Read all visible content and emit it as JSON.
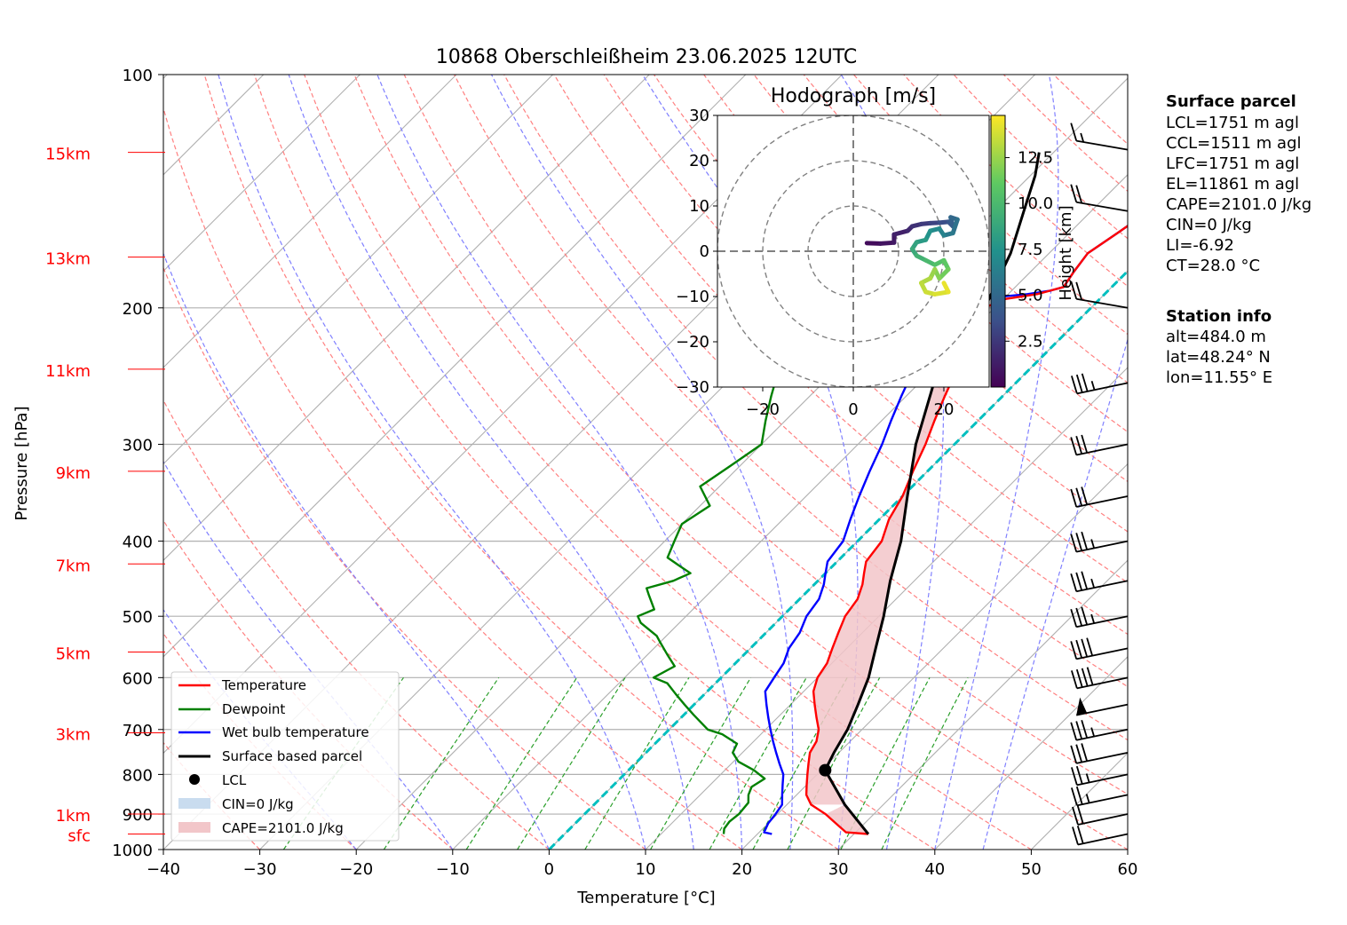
{
  "chart_data": [
    {
      "type": "skew-t",
      "title": "10868 Oberschleißheim 23.06.2025 12UTC",
      "xlabel": "Temperature [°C]",
      "ylabel": "Pressure [hPa]",
      "xlim": [
        -40,
        60
      ],
      "ylim": [
        1000,
        100
      ],
      "y_scale": "log",
      "x_ticks": [
        -40,
        -30,
        -20,
        -10,
        0,
        10,
        20,
        30,
        40,
        50,
        60
      ],
      "x_tick_labels": [
        "−40",
        "−30",
        "−20",
        "−10",
        "0",
        "10",
        "20",
        "30",
        "40",
        "50",
        "60"
      ],
      "y_ticks": [
        1000,
        900,
        800,
        700,
        600,
        500,
        400,
        300,
        200,
        100
      ],
      "y_tick_labels": [
        "1000",
        "900",
        "800",
        "700",
        "600",
        "500",
        "400",
        "300",
        "200",
        "100"
      ],
      "height_labels": [
        {
          "label": "sfc",
          "p": 955
        },
        {
          "label": "1km",
          "p": 900
        },
        {
          "label": "3km",
          "p": 707
        },
        {
          "label": "5km",
          "p": 556
        },
        {
          "label": "7km",
          "p": 428
        },
        {
          "label": "9km",
          "p": 325
        },
        {
          "label": "11km",
          "p": 240
        },
        {
          "label": "13km",
          "p": 172
        },
        {
          "label": "15km",
          "p": 126
        }
      ],
      "grid": true,
      "legend_position": "lower-left",
      "colors": {
        "temperature": "#ff0000",
        "dewpoint": "#008000",
        "wetbulb": "#0000ff",
        "parcel": "#000000",
        "cape_fill": "#f2c6c9",
        "cin_fill": "#c9dcef",
        "isotherm_0": "#00bfbf",
        "dry_adiabat": "#ff8080",
        "moist_adiabat": "#8080ff",
        "mixing_ratio": "#2ca02c",
        "height_label": "#ff0000"
      },
      "series": [
        {
          "name": "Temperature",
          "points": [
            [
              31.5,
              955
            ],
            [
              29,
              950
            ],
            [
              27,
              925
            ],
            [
              25,
              900
            ],
            [
              22.5,
              875
            ],
            [
              21,
              850
            ],
            [
              20,
              825
            ],
            [
              19,
              800
            ],
            [
              18,
              775
            ],
            [
              17,
              750
            ],
            [
              16.5,
              725
            ],
            [
              15.5,
              700
            ],
            [
              14,
              675
            ],
            [
              12.5,
              650
            ],
            [
              11,
              625
            ],
            [
              10,
              600
            ],
            [
              9.5,
              575
            ],
            [
              8.5,
              550
            ],
            [
              7.5,
              525
            ],
            [
              6.5,
              500
            ],
            [
              6,
              475
            ],
            [
              5,
              455
            ],
            [
              4,
              440
            ],
            [
              3,
              425
            ],
            [
              2.5,
              400
            ],
            [
              1,
              375
            ],
            [
              0,
              350
            ],
            [
              -1.5,
              325
            ],
            [
              -3,
              300
            ],
            [
              -4.5,
              280
            ],
            [
              -6,
              260
            ],
            [
              -7.5,
              240
            ],
            [
              -9,
              225
            ],
            [
              -10.5,
              210
            ],
            [
              -11,
              200
            ],
            [
              -10,
              195
            ],
            [
              -7,
              192
            ],
            [
              -6,
              190
            ],
            [
              -5,
              188
            ],
            [
              -5.5,
              180
            ],
            [
              -6,
              170
            ],
            [
              -5,
              160
            ],
            [
              -4,
              150
            ],
            [
              -3,
              140
            ],
            [
              -1,
              135
            ],
            [
              2,
              130
            ],
            [
              4,
              126
            ],
            [
              6,
              125
            ]
          ]
        },
        {
          "name": "Dewpoint",
          "points": [
            [
              16.5,
              955
            ],
            [
              16,
              940
            ],
            [
              15.8,
              920
            ],
            [
              16,
              900
            ],
            [
              15.8,
              870
            ],
            [
              15,
              850
            ],
            [
              14.5,
              830
            ],
            [
              15,
              810
            ],
            [
              13,
              790
            ],
            [
              10.5,
              770
            ],
            [
              9,
              750
            ],
            [
              8.5,
              730
            ],
            [
              6,
              710
            ],
            [
              4,
              700
            ],
            [
              1,
              670
            ],
            [
              -1,
              650
            ],
            [
              -3,
              630
            ],
            [
              -5,
              610
            ],
            [
              -7,
              600
            ],
            [
              -6,
              580
            ],
            [
              -8,
              560
            ],
            [
              -10,
              540
            ],
            [
              -11,
              530
            ],
            [
              -14,
              510
            ],
            [
              -15,
              500
            ],
            [
              -14,
              490
            ],
            [
              -16,
              470
            ],
            [
              -17,
              460
            ],
            [
              -15,
              450
            ],
            [
              -14,
              440
            ],
            [
              -16,
              430
            ],
            [
              -18,
              420
            ],
            [
              -19,
              400
            ],
            [
              -20,
              380
            ],
            [
              -19,
              360
            ],
            [
              -22,
              340
            ],
            [
              -21,
              320
            ],
            [
              -20,
              300
            ],
            [
              -22,
              280
            ],
            [
              -24,
              260
            ],
            [
              -26,
              240
            ],
            [
              -28,
              220
            ],
            [
              -27,
              210
            ],
            [
              -30,
              200
            ],
            [
              -31,
              190
            ],
            [
              -32,
              180
            ],
            [
              -33,
              170
            ],
            [
              -34,
              160
            ],
            [
              -35,
              150
            ],
            [
              -36,
              140
            ],
            [
              -37,
              130
            ],
            [
              -37.5,
              126
            ]
          ]
        },
        {
          "name": "Wet bulb temperature",
          "points": [
            [
              21.5,
              955
            ],
            [
              20.5,
              950
            ],
            [
              20,
              925
            ],
            [
              19.8,
              900
            ],
            [
              19.5,
              875
            ],
            [
              18.5,
              850
            ],
            [
              17.5,
              825
            ],
            [
              16.5,
              800
            ],
            [
              15,
              775
            ],
            [
              13.5,
              750
            ],
            [
              12,
              725
            ],
            [
              10.5,
              700
            ],
            [
              9,
              675
            ],
            [
              7.5,
              650
            ],
            [
              6,
              625
            ],
            [
              5.5,
              600
            ],
            [
              5,
              575
            ],
            [
              4,
              550
            ],
            [
              3.5,
              525
            ],
            [
              2.5,
              500
            ],
            [
              2,
              475
            ],
            [
              1,
              455
            ],
            [
              0,
              440
            ],
            [
              -1,
              425
            ],
            [
              -1.5,
              400
            ],
            [
              -3,
              375
            ],
            [
              -4.5,
              350
            ],
            [
              -6,
              325
            ],
            [
              -7.5,
              300
            ],
            [
              -9,
              280
            ],
            [
              -10.5,
              260
            ],
            [
              -12,
              240
            ],
            [
              -13,
              225
            ],
            [
              -14,
              210
            ],
            [
              -14,
              200
            ],
            [
              -13,
              195
            ],
            [
              -8,
              192
            ],
            [
              -6,
              190
            ],
            [
              -5,
              188
            ],
            [
              -5.5,
              180
            ],
            [
              -6,
              170
            ],
            [
              -5,
              160
            ],
            [
              -4,
              150
            ],
            [
              -3,
              140
            ],
            [
              -1,
              135
            ],
            [
              2,
              130
            ],
            [
              4,
              126
            ],
            [
              5,
              125
            ]
          ]
        },
        {
          "name": "Surface based parcel",
          "points": [
            [
              31.5,
              955
            ],
            [
              26,
              875
            ],
            [
              20.4,
              790
            ],
            [
              19.5,
              750
            ],
            [
              18.5,
              700
            ],
            [
              17,
              650
            ],
            [
              15.3,
              600
            ],
            [
              13,
              550
            ],
            [
              10.5,
              500
            ],
            [
              7.5,
              450
            ],
            [
              4.5,
              400
            ],
            [
              0.5,
              350
            ],
            [
              -4,
              300
            ],
            [
              -8.5,
              250
            ],
            [
              -11,
              200
            ],
            [
              -14,
              170
            ],
            [
              -17,
              150
            ],
            [
              -19.5,
              135
            ],
            [
              -21.5,
              126
            ]
          ]
        }
      ],
      "lcl": {
        "t": 20.4,
        "p": 790
      },
      "cape_label": "CAPE=2101.0 J/kg",
      "cin_label": "CIN=0 J/kg",
      "legend": [
        "Temperature",
        "Dewpoint",
        "Wet bulb temperature",
        "Surface based parcel",
        "LCL",
        "CIN=0 J/kg",
        "CAPE=2101.0 J/kg"
      ],
      "wind_barbs": [
        {
          "p": 955,
          "speed_kt": 20,
          "dir": 255
        },
        {
          "p": 900,
          "speed_kt": 20,
          "dir": 255
        },
        {
          "p": 850,
          "speed_kt": 25,
          "dir": 260
        },
        {
          "p": 800,
          "speed_kt": 25,
          "dir": 260
        },
        {
          "p": 750,
          "speed_kt": 30,
          "dir": 265
        },
        {
          "p": 700,
          "speed_kt": 35,
          "dir": 265
        },
        {
          "p": 650,
          "speed_kt": 50,
          "dir": 265
        },
        {
          "p": 600,
          "speed_kt": 40,
          "dir": 260
        },
        {
          "p": 550,
          "speed_kt": 40,
          "dir": 265
        },
        {
          "p": 500,
          "speed_kt": 35,
          "dir": 265
        },
        {
          "p": 450,
          "speed_kt": 35,
          "dir": 265
        },
        {
          "p": 400,
          "speed_kt": 35,
          "dir": 265
        },
        {
          "p": 350,
          "speed_kt": 30,
          "dir": 265
        },
        {
          "p": 300,
          "speed_kt": 30,
          "dir": 265
        },
        {
          "p": 250,
          "speed_kt": 35,
          "dir": 260
        },
        {
          "p": 200,
          "speed_kt": 20,
          "dir": 275
        },
        {
          "p": 150,
          "speed_kt": 20,
          "dir": 275
        },
        {
          "p": 125,
          "speed_kt": 15,
          "dir": 275
        }
      ]
    },
    {
      "type": "hodograph",
      "title": "Hodograph [m/s]",
      "xlim": [
        -30,
        30
      ],
      "ylim": [
        -30,
        30
      ],
      "x_ticks": [
        -20,
        0,
        20
      ],
      "x_tick_labels": [
        "−20",
        "0",
        "20"
      ],
      "y_ticks": [
        -30,
        -20,
        -10,
        0,
        10,
        20,
        30
      ],
      "y_tick_labels": [
        "−30",
        "−20",
        "−10",
        "0",
        "10",
        "20",
        "30"
      ],
      "rings": [
        10,
        20,
        30
      ],
      "colorbar_label": "Height [km]",
      "colorbar_ticks": [
        2.5,
        5.0,
        7.5,
        10.0,
        12.5
      ],
      "colorbar_tick_labels": [
        "2.5",
        "5.0",
        "7.5",
        "10.0",
        "12.5"
      ],
      "colorbar_range": [
        0,
        14.8
      ],
      "colormap": "viridis",
      "points": [
        {
          "u": 3,
          "v": 1.8,
          "h": 0.5
        },
        {
          "u": 6,
          "v": 1.7,
          "h": 0.8
        },
        {
          "u": 9,
          "v": 1.9,
          "h": 1.1
        },
        {
          "u": 9,
          "v": 3.7,
          "h": 1.4
        },
        {
          "u": 12,
          "v": 4.5,
          "h": 1.8
        },
        {
          "u": 13,
          "v": 5.5,
          "h": 2.2
        },
        {
          "u": 15,
          "v": 6,
          "h": 2.6
        },
        {
          "u": 17,
          "v": 6.2,
          "h": 3.0
        },
        {
          "u": 19,
          "v": 6.3,
          "h": 3.5
        },
        {
          "u": 21,
          "v": 6.5,
          "h": 4.0
        },
        {
          "u": 22,
          "v": 5.5,
          "h": 4.5
        },
        {
          "u": 21.5,
          "v": 7.5,
          "h": 5.0
        },
        {
          "u": 23,
          "v": 7,
          "h": 5.5
        },
        {
          "u": 22,
          "v": 4,
          "h": 6.0
        },
        {
          "u": 20,
          "v": 3.5,
          "h": 6.5
        },
        {
          "u": 19,
          "v": 5,
          "h": 7.0
        },
        {
          "u": 17,
          "v": 4.5,
          "h": 7.5
        },
        {
          "u": 16,
          "v": 2.5,
          "h": 8.0
        },
        {
          "u": 14,
          "v": 2,
          "h": 8.5
        },
        {
          "u": 13,
          "v": 0.5,
          "h": 9.0
        },
        {
          "u": 14,
          "v": -1,
          "h": 9.5
        },
        {
          "u": 16,
          "v": -2,
          "h": 10.0
        },
        {
          "u": 18,
          "v": -3,
          "h": 10.5
        },
        {
          "u": 20,
          "v": -2,
          "h": 11.0
        },
        {
          "u": 21,
          "v": -4,
          "h": 11.5
        },
        {
          "u": 19,
          "v": -6,
          "h": 12.0
        },
        {
          "u": 18,
          "v": -4,
          "h": 12.5
        },
        {
          "u": 17,
          "v": -6,
          "h": 13.0
        },
        {
          "u": 15,
          "v": -7,
          "h": 13.3
        },
        {
          "u": 16,
          "v": -9,
          "h": 13.7
        },
        {
          "u": 18,
          "v": -9.5,
          "h": 14.0
        },
        {
          "u": 21,
          "v": -9,
          "h": 14.3
        },
        {
          "u": 20,
          "v": -7,
          "h": 14.6
        }
      ]
    }
  ],
  "info": {
    "surface": {
      "title": "Surface parcel",
      "lines": [
        "LCL=1751 m agl",
        "CCL=1511 m agl",
        "LFC=1751 m agl",
        "EL=11861 m agl",
        "CAPE=2101.0 J/kg",
        "CIN=0 J/kg",
        "LI=-6.92",
        "CT=28.0 °C"
      ]
    },
    "station": {
      "title": "Station info",
      "lines": [
        "alt=484.0 m",
        "lat=48.24° N",
        "lon=11.55° E"
      ]
    }
  }
}
